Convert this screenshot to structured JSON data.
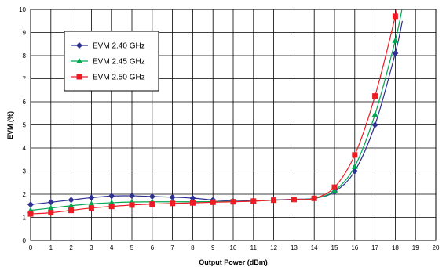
{
  "chart_data": {
    "type": "line",
    "xlabel": "Output Power (dBm)",
    "ylabel": "EVM (%)",
    "xlim": [
      0,
      20
    ],
    "ylim": [
      0,
      10
    ],
    "x_ticks": [
      0,
      1,
      2,
      3,
      4,
      5,
      6,
      7,
      8,
      9,
      10,
      11,
      12,
      13,
      14,
      15,
      16,
      17,
      18,
      19,
      20
    ],
    "y_ticks": [
      0,
      1,
      2,
      3,
      4,
      5,
      6,
      7,
      8,
      9,
      10
    ],
    "grid": true,
    "legend_position": "top-left",
    "x": [
      0,
      1,
      2,
      3,
      4,
      5,
      6,
      7,
      8,
      9,
      10,
      11,
      12,
      13,
      14,
      15,
      16,
      17,
      18
    ],
    "series": [
      {
        "name": "EVM 2.40 GHz",
        "color": "#2e3192",
        "marker": "diamond",
        "values": [
          1.55,
          1.65,
          1.75,
          1.85,
          1.92,
          1.93,
          1.9,
          1.87,
          1.83,
          1.75,
          1.7,
          1.72,
          1.75,
          1.78,
          1.82,
          2.1,
          3.0,
          5.0,
          8.1
        ]
      },
      {
        "name": "EVM 2.45 GHz",
        "color": "#00a651",
        "marker": "triangle",
        "values": [
          1.3,
          1.4,
          1.5,
          1.58,
          1.63,
          1.66,
          1.67,
          1.67,
          1.67,
          1.68,
          1.68,
          1.7,
          1.74,
          1.77,
          1.82,
          2.15,
          3.2,
          5.45,
          8.65
        ]
      },
      {
        "name": "EVM 2.50 GHz",
        "color": "#ed1c24",
        "marker": "square",
        "values": [
          1.15,
          1.2,
          1.3,
          1.4,
          1.47,
          1.53,
          1.57,
          1.6,
          1.62,
          1.65,
          1.67,
          1.7,
          1.74,
          1.77,
          1.82,
          2.3,
          3.7,
          6.25,
          9.7
        ]
      }
    ]
  }
}
